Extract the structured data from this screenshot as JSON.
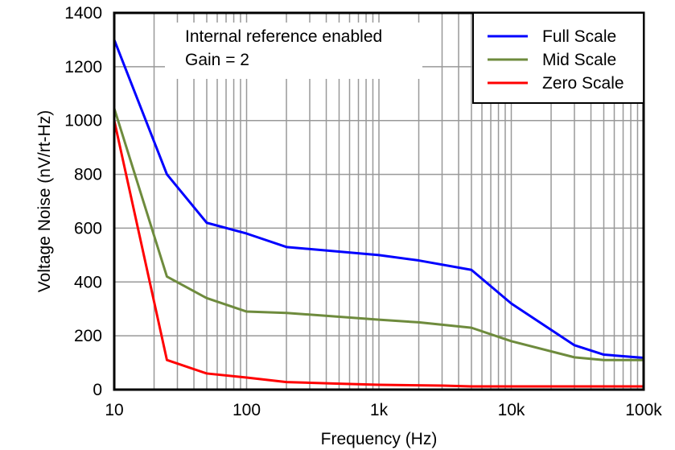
{
  "chart_data": {
    "type": "line",
    "title": "",
    "xlabel": "Frequency (Hz)",
    "ylabel": "Voltage Noise (nV/rt-Hz)",
    "xscale": "log",
    "xlim": [
      10,
      100000
    ],
    "ylim": [
      0,
      1400
    ],
    "grid": true,
    "x_ticks": [
      10,
      100,
      1000,
      10000,
      100000
    ],
    "x_tick_labels": [
      "10",
      "100",
      "1k",
      "10k",
      "100k"
    ],
    "y_ticks": [
      0,
      200,
      400,
      600,
      800,
      1000,
      1200,
      1400
    ],
    "y_tick_labels": [
      "0",
      "200",
      "400",
      "600",
      "800",
      "1000",
      "1200",
      "1400"
    ],
    "annotations": [
      "Internal reference enabled",
      "Gain = 2"
    ],
    "legend_position": "top-right",
    "series": [
      {
        "name": "Full Scale",
        "color": "#0000ff",
        "x": [
          10,
          25,
          50,
          100,
          200,
          1000,
          2000,
          5000,
          10000,
          30000,
          50000,
          100000
        ],
        "y": [
          1300,
          800,
          620,
          580,
          530,
          500,
          480,
          445,
          320,
          165,
          130,
          118
        ]
      },
      {
        "name": "Mid Scale",
        "color": "#6e8b3d",
        "x": [
          10,
          25,
          50,
          100,
          200,
          1000,
          2000,
          5000,
          10000,
          30000,
          50000,
          100000
        ],
        "y": [
          1045,
          420,
          340,
          290,
          285,
          260,
          250,
          230,
          180,
          120,
          110,
          110
        ]
      },
      {
        "name": "Zero Scale",
        "color": "#ff0000",
        "x": [
          10,
          25,
          50,
          100,
          200,
          500,
          1000,
          3000,
          5000,
          100000
        ],
        "y": [
          1000,
          110,
          60,
          45,
          28,
          22,
          18,
          15,
          12,
          12
        ]
      }
    ]
  }
}
